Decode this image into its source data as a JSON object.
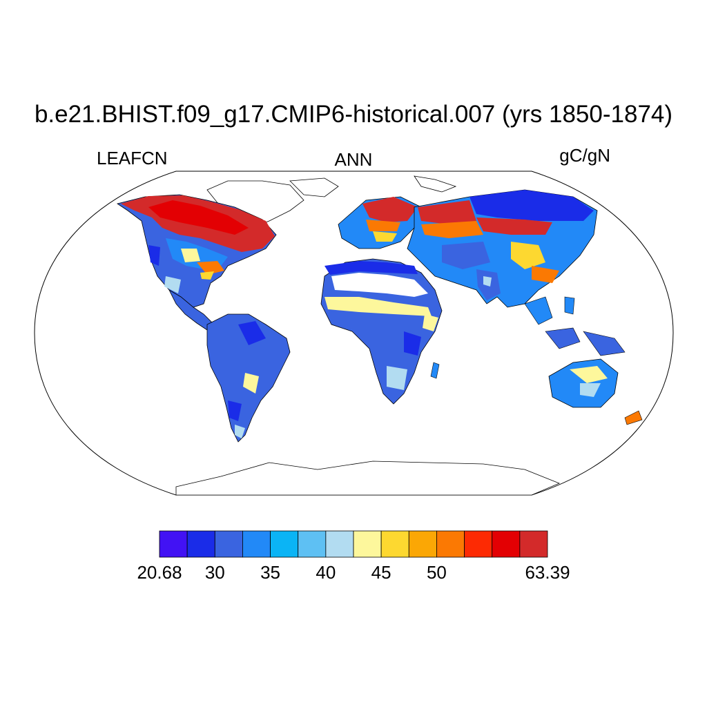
{
  "title": "b.e21.BHIST.f09_g17.CMIP6-historical.007 (yrs 1850-1874)",
  "variable": "LEAFCN",
  "season": "ANN",
  "units": "gC/gN",
  "colorbar": {
    "colors": [
      "#4212f4",
      "#1a2ce8",
      "#3a64e0",
      "#2289f7",
      "#0bb4f5",
      "#5ec0f3",
      "#b2dcf1",
      "#fdf79c",
      "#fdd830",
      "#fba705",
      "#fb7903",
      "#fd2a03",
      "#e30003",
      "#d32a2a"
    ],
    "tick_labels": [
      "20.68",
      "30",
      "35",
      "40",
      "45",
      "50",
      "63.39"
    ],
    "tick_boundary_index": [
      0,
      2,
      4,
      6,
      8,
      10,
      14
    ]
  }
}
